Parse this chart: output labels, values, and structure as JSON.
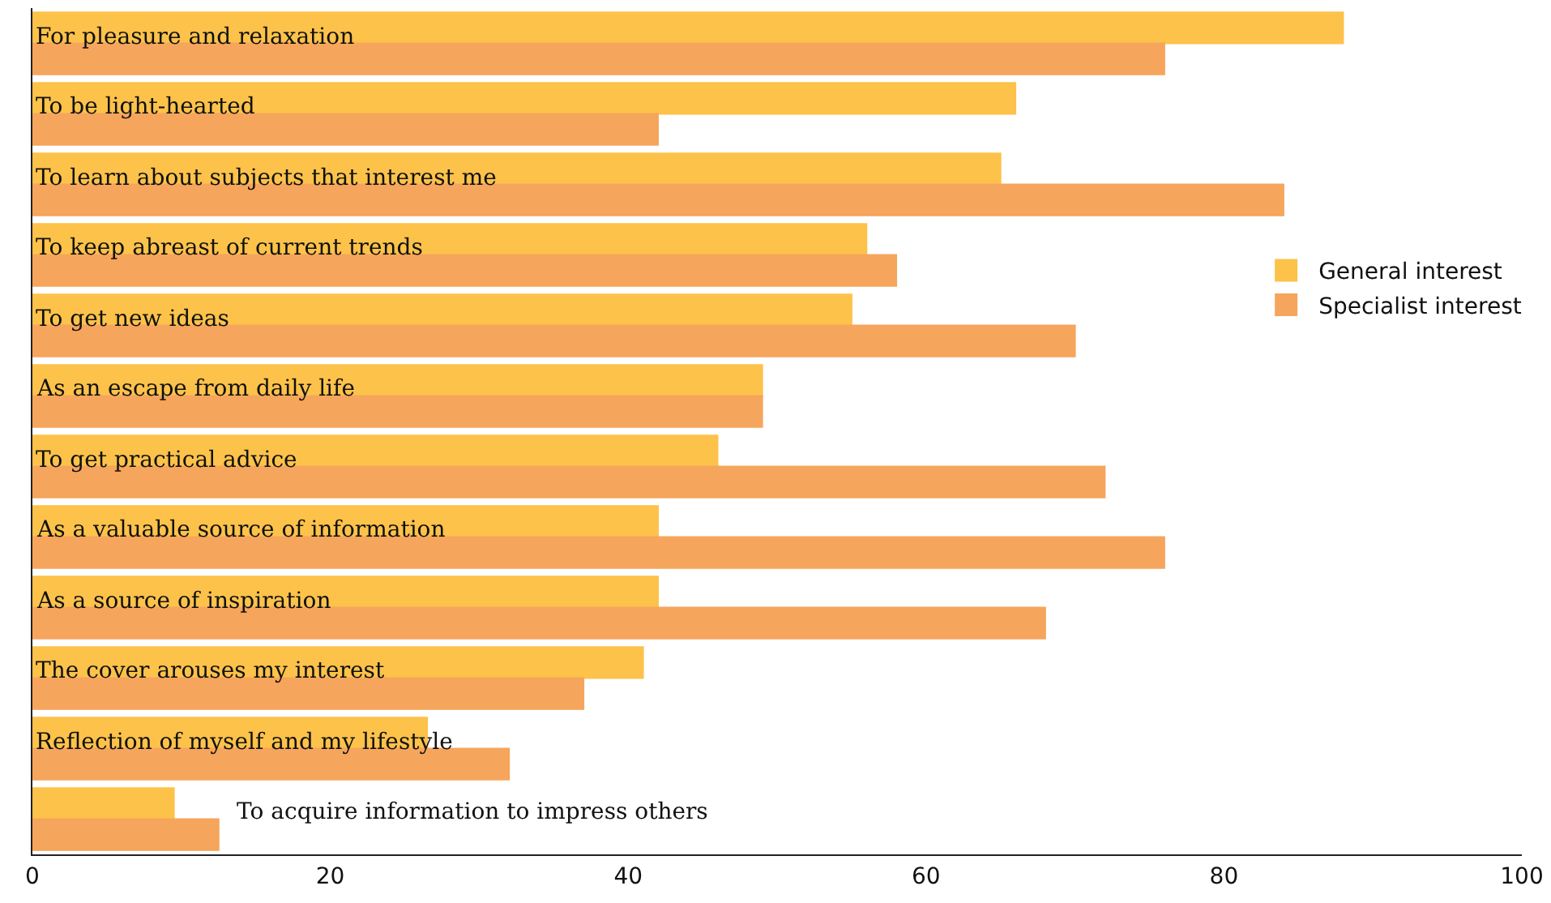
{
  "chart_data": {
    "type": "bar",
    "orientation": "horizontal",
    "categories": [
      "For pleasure and relaxation",
      "To be light-hearted",
      "To learn about subjects that interest me",
      "To keep abreast of current trends",
      "To get new ideas",
      "As an escape from daily life",
      "To get practical advice",
      "As a valuable source of information",
      "As a source of inspiration",
      "The cover arouses my interest",
      "Reflection of myself and my lifestyle",
      "To acquire information to impress others"
    ],
    "series": [
      {
        "name": "General interest",
        "color": "#fdc24a",
        "values": [
          88,
          66,
          65,
          56,
          55,
          49,
          46,
          42,
          42,
          41,
          26.5,
          9.5
        ]
      },
      {
        "name": "Specialist interest",
        "color": "#f6a55c",
        "values": [
          76,
          42,
          84,
          58,
          70,
          49,
          72,
          76,
          68,
          37,
          32,
          12.5
        ]
      }
    ],
    "xlim": [
      0,
      100
    ],
    "xticks": [
      0,
      20,
      40,
      60,
      80,
      100
    ],
    "legend": "right"
  }
}
